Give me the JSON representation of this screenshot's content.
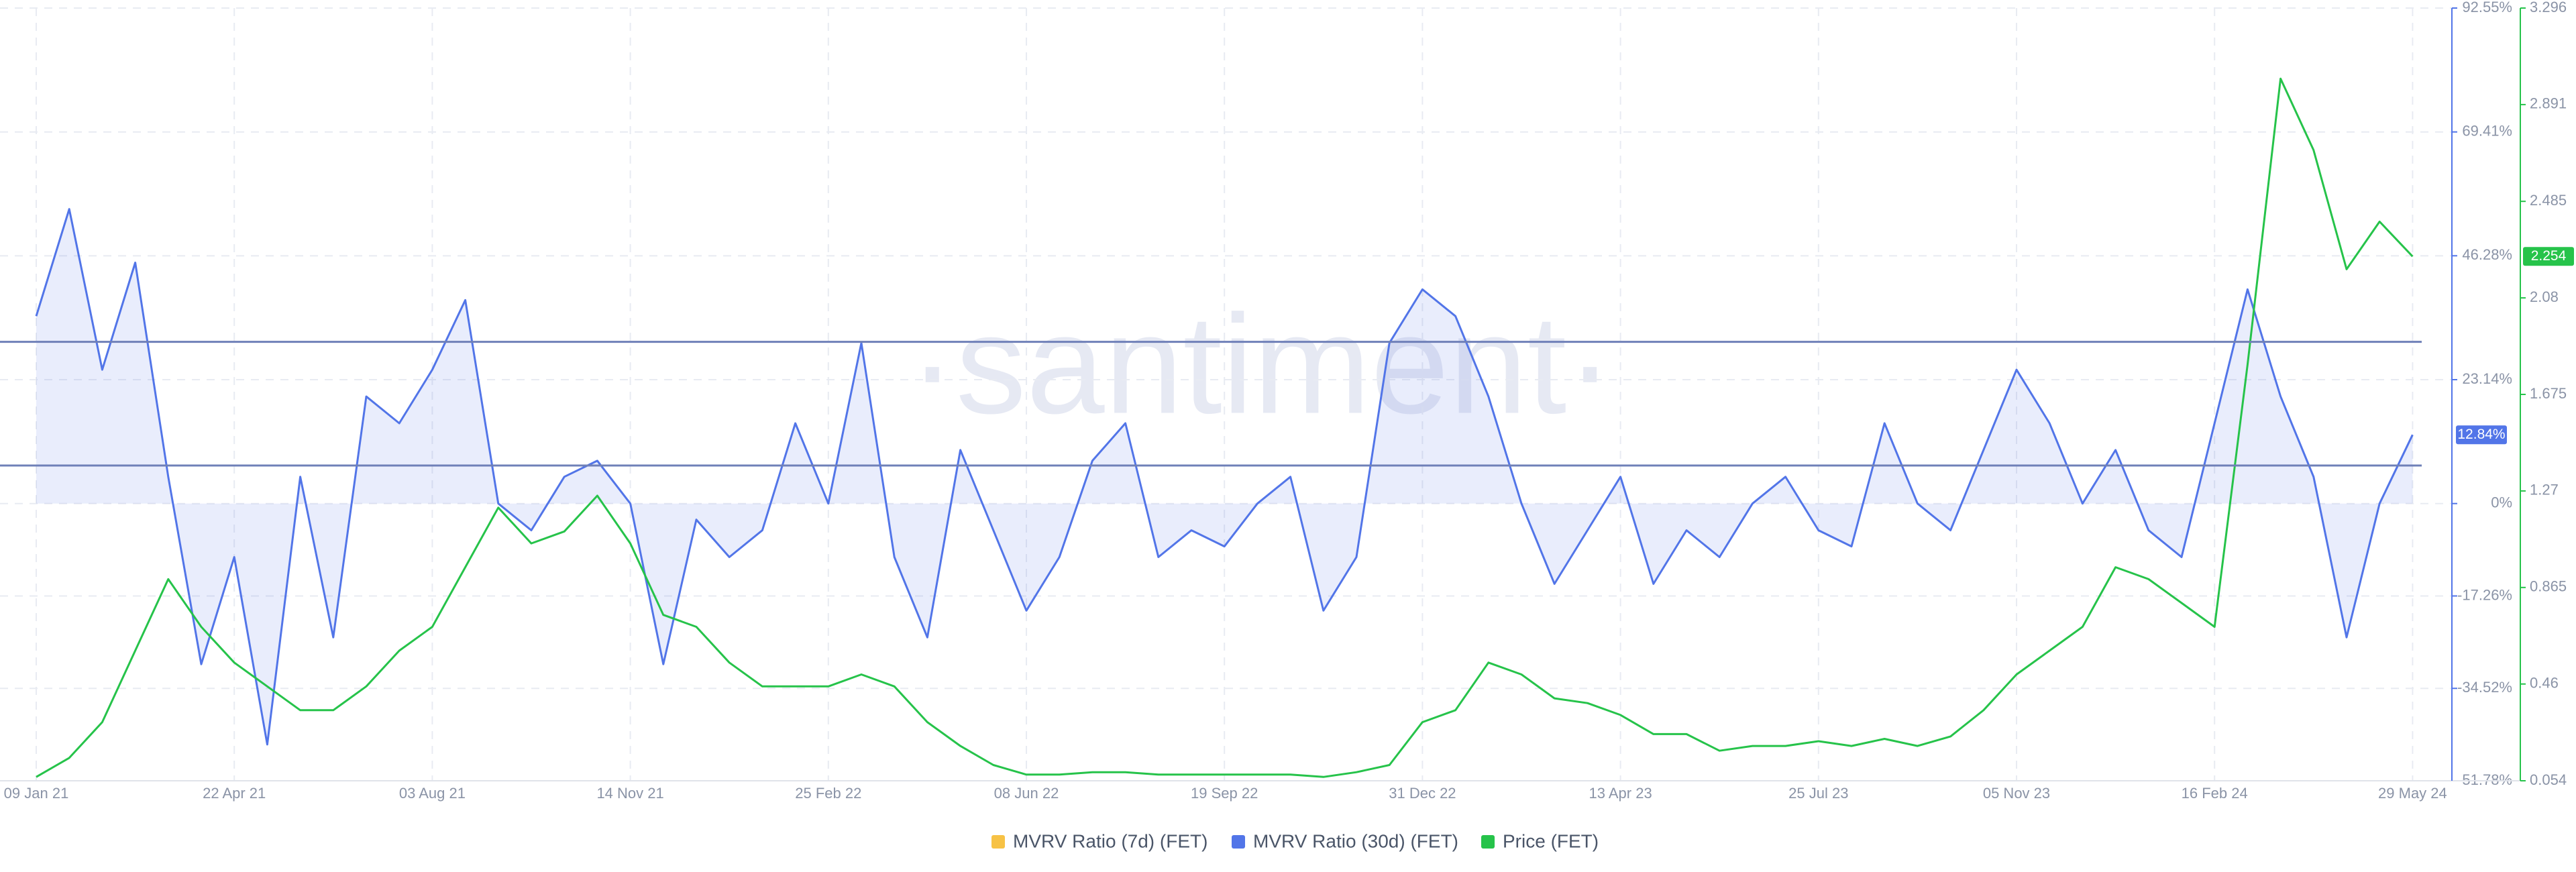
{
  "chart_data": {
    "type": "line",
    "watermark": "·santiment·",
    "categories": [
      "09 Jan 21",
      null,
      null,
      null,
      null,
      null,
      "22 Apr 21",
      null,
      null,
      null,
      null,
      null,
      "03 Aug 21",
      null,
      null,
      null,
      null,
      null,
      "14 Nov 21",
      null,
      null,
      null,
      null,
      null,
      "25 Feb 22",
      null,
      null,
      null,
      null,
      null,
      "08 Jun 22",
      null,
      null,
      null,
      null,
      null,
      "19 Sep 22",
      null,
      null,
      null,
      null,
      null,
      "31 Dec 22",
      null,
      null,
      null,
      null,
      null,
      "13 Apr 23",
      null,
      null,
      null,
      null,
      null,
      "25 Jul 23",
      null,
      null,
      null,
      null,
      null,
      "05 Nov 23",
      null,
      null,
      null,
      null,
      null,
      "16 Feb 24",
      null,
      null,
      null,
      null,
      null,
      "29 May 24"
    ],
    "series": [
      {
        "name": "MVRV Ratio (7d) (FET)",
        "color": "#f7c245",
        "axis": "y",
        "values": [
          null,
          null,
          null,
          null,
          null,
          null,
          null,
          null,
          null,
          null,
          null,
          null,
          null,
          null,
          null,
          null,
          null,
          null,
          null,
          null,
          null,
          null,
          null,
          null,
          null,
          null,
          null,
          null,
          null,
          null,
          null,
          null,
          null,
          null,
          null,
          null,
          null,
          null,
          null,
          null,
          null,
          null,
          null,
          null,
          null,
          null,
          null,
          null,
          null,
          null,
          null,
          null,
          null,
          null,
          null,
          null,
          null,
          null,
          null,
          null,
          null,
          null,
          null,
          null,
          null,
          null,
          null,
          null,
          null,
          null,
          null,
          null,
          null
        ]
      },
      {
        "name": "MVRV Ratio (30d) (FET)",
        "color": "#5275e8",
        "axis": "y",
        "badge": "12.84%",
        "values": [
          35,
          55,
          25,
          45,
          5,
          -30,
          -10,
          -45,
          5,
          -25,
          20,
          15,
          25,
          38,
          0,
          -5,
          5,
          8,
          0,
          -30,
          -3,
          -10,
          -5,
          15,
          0,
          30,
          -10,
          -25,
          10,
          -5,
          -20,
          -10,
          8,
          15,
          -10,
          -5,
          -8,
          0,
          5,
          -20,
          -10,
          30,
          40,
          35,
          20,
          0,
          -15,
          -5,
          5,
          -15,
          -5,
          -10,
          0,
          5,
          -5,
          -8,
          15,
          0,
          -5,
          10,
          25,
          15,
          0,
          10,
          -5,
          -10,
          15,
          40,
          20,
          5,
          -25,
          0,
          12.84
        ]
      },
      {
        "name": "Price (FET)",
        "color": "#26c34a",
        "axis": "y2",
        "badge": "2.254",
        "values": [
          0.07,
          0.15,
          0.3,
          0.6,
          0.9,
          0.7,
          0.55,
          0.45,
          0.35,
          0.35,
          0.45,
          0.6,
          0.7,
          0.95,
          1.2,
          1.05,
          1.1,
          1.25,
          1.05,
          0.75,
          0.7,
          0.55,
          0.45,
          0.45,
          0.45,
          0.5,
          0.45,
          0.3,
          0.2,
          0.12,
          0.08,
          0.08,
          0.09,
          0.09,
          0.08,
          0.08,
          0.08,
          0.08,
          0.08,
          0.07,
          0.09,
          0.12,
          0.3,
          0.35,
          0.55,
          0.5,
          0.4,
          0.38,
          0.33,
          0.25,
          0.25,
          0.18,
          0.2,
          0.2,
          0.22,
          0.2,
          0.23,
          0.2,
          0.24,
          0.35,
          0.5,
          0.6,
          0.7,
          0.95,
          0.9,
          0.8,
          0.7,
          1.8,
          3.0,
          2.7,
          2.2,
          2.4,
          2.254
        ]
      }
    ],
    "ylim": [
      -51.78,
      92.55
    ],
    "yticks": [
      {
        "value": -51.78,
        "label": "-51.78%"
      },
      {
        "value": -34.52,
        "label": "-34.52%"
      },
      {
        "value": -17.26,
        "label": "-17.26%"
      },
      {
        "value": 0,
        "label": "0%"
      },
      {
        "value": 23.14,
        "label": "23.14%"
      },
      {
        "value": 46.28,
        "label": "46.28%"
      },
      {
        "value": 69.41,
        "label": "69.41%"
      },
      {
        "value": 92.55,
        "label": "92.55%"
      }
    ],
    "y2lim": [
      0.054,
      3.296
    ],
    "y2ticks": [
      0.054,
      0.46,
      0.865,
      1.27,
      1.675,
      2.08,
      2.485,
      2.891,
      3.296
    ],
    "reference_lines": [
      30.2,
      7.1
    ],
    "grid": true
  }
}
